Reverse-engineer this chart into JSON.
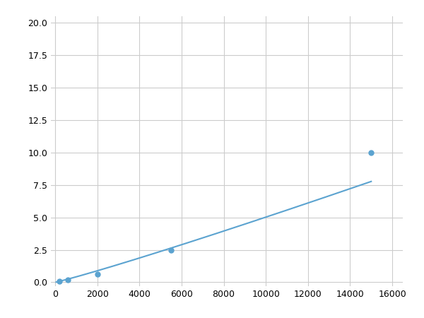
{
  "x": [
    200,
    600,
    2000,
    5500,
    15000
  ],
  "y": [
    0.1,
    0.2,
    0.65,
    2.5,
    10.0
  ],
  "line_color": "#5ba3d0",
  "marker_color": "#5ba3d0",
  "marker_size": 5,
  "line_width": 1.5,
  "xlim": [
    -200,
    16500
  ],
  "ylim": [
    -0.3,
    20.5
  ],
  "yticks": [
    0.0,
    2.5,
    5.0,
    7.5,
    10.0,
    12.5,
    15.0,
    17.5,
    20.0
  ],
  "xticks": [
    0,
    2000,
    4000,
    6000,
    8000,
    10000,
    12000,
    14000,
    16000
  ],
  "grid": true,
  "background_color": "#ffffff",
  "plot_bg_color": "#ffffff"
}
